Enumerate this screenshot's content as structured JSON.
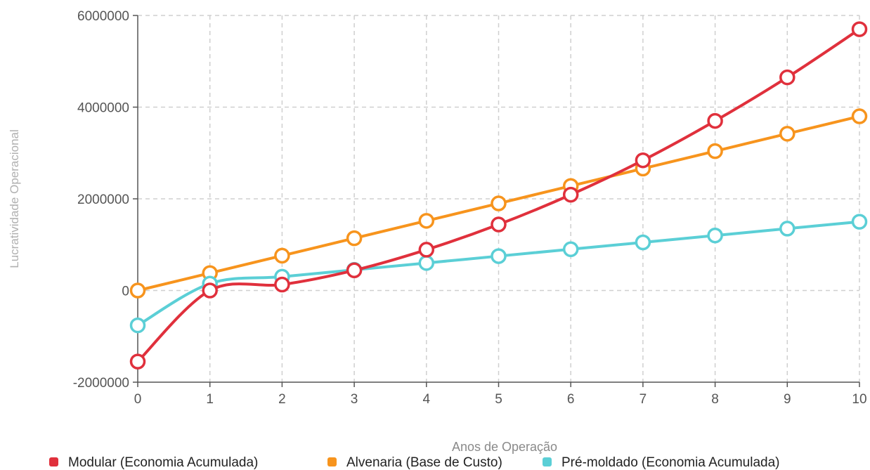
{
  "chart_data": {
    "type": "line",
    "xlabel": "Anos de Operação",
    "ylabel": "Lucratividade Operacional",
    "x": [
      0,
      1,
      2,
      3,
      4,
      5,
      6,
      7,
      8,
      9,
      10
    ],
    "xlim": [
      0,
      10
    ],
    "ylim": [
      -2000000,
      6000000
    ],
    "y_ticks": [
      "-2000000",
      "0",
      "2000000",
      "4000000",
      "6000000"
    ],
    "x_ticks": [
      "0",
      "1",
      "2",
      "3",
      "4",
      "5",
      "6",
      "7",
      "8",
      "9",
      "10"
    ],
    "grid": true,
    "legend_position": "bottom",
    "series": [
      {
        "name": "Modular (Economia Acumulada)",
        "color": "#e0303c",
        "values": [
          -1550000,
          0,
          130000,
          440000,
          890000,
          1440000,
          2090000,
          2840000,
          3700000,
          4650000,
          5700000
        ]
      },
      {
        "name": "Alvenaria (Base de Custo)",
        "color": "#f7941d",
        "values": [
          0,
          380000,
          760000,
          1140000,
          1520000,
          1900000,
          2280000,
          2660000,
          3040000,
          3420000,
          3800000
        ]
      },
      {
        "name": "Pré-moldado (Economia Acumulada)",
        "color": "#5bcfd6",
        "values": [
          -760000,
          150000,
          300000,
          450000,
          600000,
          750000,
          900000,
          1050000,
          1200000,
          1350000,
          1500000
        ]
      }
    ]
  }
}
